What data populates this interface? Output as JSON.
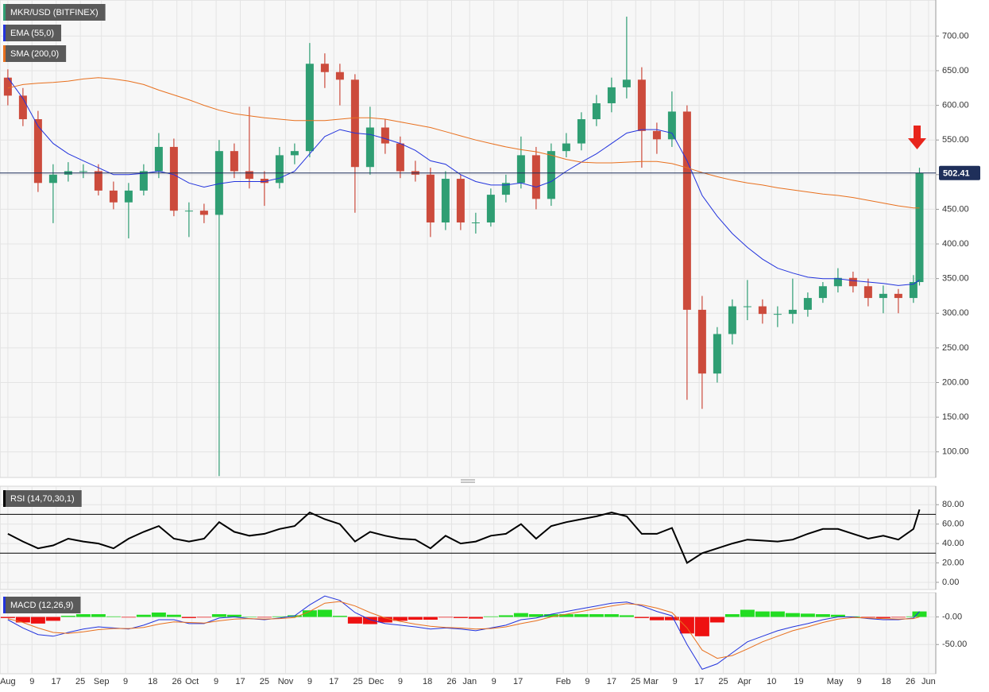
{
  "chart_data": [
    {
      "type": "candlestick",
      "title": "MKR/USD (BITFINEX)",
      "x": [
        0,
        5,
        10,
        15,
        20,
        25,
        30,
        35,
        40,
        45,
        50,
        55,
        60,
        65,
        70,
        75,
        80,
        85,
        90,
        95,
        100,
        105,
        110,
        115,
        120,
        125,
        130,
        135,
        140,
        145,
        150,
        155,
        160,
        165,
        170,
        175,
        180,
        185,
        190,
        195,
        200,
        205,
        210,
        215,
        220,
        225,
        230,
        235,
        240,
        245,
        250,
        255,
        260,
        265,
        270,
        275,
        280,
        285,
        290,
        295,
        300,
        302
      ],
      "open": [
        640,
        614,
        580,
        488,
        500,
        505,
        505,
        477,
        460,
        477,
        505,
        540,
        448,
        448,
        442,
        534,
        505,
        494,
        488,
        528,
        534,
        660,
        648,
        637,
        511,
        568,
        545,
        505,
        500,
        431,
        494,
        431,
        431,
        471,
        488,
        528,
        465,
        534,
        545,
        580,
        603,
        626,
        637,
        563,
        551,
        591,
        305,
        213,
        270,
        310,
        310,
        299,
        299,
        305,
        322,
        339,
        351,
        339,
        322,
        328,
        322,
        345
      ],
      "high": [
        652,
        625,
        592,
        515,
        518,
        515,
        515,
        490,
        488,
        515,
        560,
        552,
        460,
        458,
        550,
        545,
        598,
        505,
        540,
        545,
        690,
        675,
        660,
        645,
        598,
        580,
        555,
        520,
        510,
        505,
        500,
        445,
        480,
        500,
        555,
        540,
        545,
        560,
        590,
        615,
        640,
        728,
        655,
        575,
        620,
        600,
        325,
        280,
        320,
        348,
        320,
        310,
        350,
        330,
        345,
        365,
        360,
        350,
        340,
        335,
        355,
        510
      ],
      "low": [
        600,
        570,
        475,
        430,
        490,
        495,
        470,
        450,
        408,
        470,
        495,
        440,
        410,
        430,
        65,
        495,
        480,
        455,
        480,
        515,
        525,
        625,
        600,
        445,
        500,
        530,
        495,
        490,
        410,
        420,
        420,
        415,
        425,
        460,
        480,
        450,
        455,
        525,
        535,
        570,
        590,
        610,
        510,
        530,
        540,
        175,
        162,
        200,
        255,
        290,
        285,
        280,
        285,
        295,
        315,
        330,
        330,
        310,
        300,
        300,
        315,
        340
      ],
      "close": [
        614,
        580,
        488,
        500,
        505,
        505,
        477,
        460,
        477,
        505,
        540,
        448,
        448,
        442,
        534,
        505,
        494,
        488,
        528,
        534,
        660,
        648,
        637,
        511,
        568,
        545,
        505,
        500,
        431,
        494,
        431,
        431,
        471,
        488,
        528,
        465,
        534,
        545,
        580,
        603,
        626,
        637,
        563,
        551,
        591,
        305,
        213,
        270,
        310,
        310,
        299,
        299,
        305,
        322,
        339,
        351,
        339,
        322,
        328,
        322,
        345,
        502.41
      ],
      "up_color": "#2f9e73",
      "down_color": "#cc4b3c",
      "last_color": "#1f2f5a",
      "series": [
        {
          "name": "EMA (55,0)",
          "color": "#2233dd",
          "values": [
            640,
            610,
            570,
            545,
            530,
            520,
            510,
            500,
            500,
            502,
            505,
            500,
            488,
            482,
            487,
            490,
            490,
            490,
            495,
            505,
            530,
            555,
            565,
            560,
            558,
            552,
            545,
            535,
            520,
            515,
            500,
            490,
            485,
            485,
            488,
            482,
            490,
            505,
            518,
            530,
            545,
            560,
            565,
            565,
            560,
            520,
            470,
            440,
            415,
            395,
            378,
            365,
            358,
            352,
            350,
            350,
            347,
            345,
            343,
            340,
            342,
            348
          ]
        },
        {
          "name": "SMA (200,0)",
          "color": "#e8701e",
          "values": [
            625,
            630,
            632,
            633,
            635,
            638,
            640,
            638,
            635,
            630,
            622,
            615,
            608,
            600,
            593,
            588,
            585,
            582,
            580,
            578,
            578,
            578,
            580,
            582,
            582,
            580,
            576,
            572,
            568,
            562,
            556,
            550,
            545,
            540,
            536,
            533,
            528,
            522,
            518,
            517,
            517,
            518,
            519,
            519,
            516,
            510,
            503,
            497,
            492,
            488,
            485,
            481,
            478,
            475,
            472,
            470,
            467,
            463,
            459,
            455,
            452,
            452
          ]
        }
      ],
      "ylim": [
        63,
        752
      ],
      "yticks": [
        {
          "value": 100,
          "label": "100.00"
        },
        {
          "value": 150,
          "label": "150.00"
        },
        {
          "value": 200,
          "label": "200.00"
        },
        {
          "value": 250,
          "label": "250.00"
        },
        {
          "value": 300,
          "label": "300.00"
        },
        {
          "value": 350,
          "label": "350.00"
        },
        {
          "value": 400,
          "label": "400.00"
        },
        {
          "value": 450,
          "label": "450.00"
        },
        {
          "value": 500,
          "label": "500.00"
        },
        {
          "value": 550,
          "label": "550.00"
        },
        {
          "value": 600,
          "label": "600.00"
        },
        {
          "value": 650,
          "label": "650.00"
        },
        {
          "value": 700,
          "label": "700.00"
        }
      ],
      "xlim": [
        -2.6,
        307.4
      ],
      "xticks": [
        {
          "value": 0,
          "label": "Aug"
        },
        {
          "value": 8,
          "label": "9"
        },
        {
          "value": 16,
          "label": "17"
        },
        {
          "value": 24,
          "label": "25"
        },
        {
          "value": 31,
          "label": "Sep"
        },
        {
          "value": 39,
          "label": "9"
        },
        {
          "value": 48,
          "label": "18"
        },
        {
          "value": 56,
          "label": "26"
        },
        {
          "value": 61,
          "label": "Oct"
        },
        {
          "value": 69,
          "label": "9"
        },
        {
          "value": 77,
          "label": "17"
        },
        {
          "value": 85,
          "label": "25"
        },
        {
          "value": 92,
          "label": "Nov"
        },
        {
          "value": 100,
          "label": "9"
        },
        {
          "value": 108,
          "label": "17"
        },
        {
          "value": 116,
          "label": "25"
        },
        {
          "value": 122,
          "label": "Dec"
        },
        {
          "value": 130,
          "label": "9"
        },
        {
          "value": 139,
          "label": "18"
        },
        {
          "value": 147,
          "label": "26"
        },
        {
          "value": 153,
          "label": "Jan"
        },
        {
          "value": 161,
          "label": "9"
        },
        {
          "value": 169,
          "label": "17"
        },
        {
          "value": 184,
          "label": "Feb"
        },
        {
          "value": 192,
          "label": "9"
        },
        {
          "value": 200,
          "label": "17"
        },
        {
          "value": 208,
          "label": "25"
        },
        {
          "value": 213,
          "label": "Mar"
        },
        {
          "value": 221,
          "label": "9"
        },
        {
          "value": 229,
          "label": "17"
        },
        {
          "value": 237,
          "label": "25"
        },
        {
          "value": 244,
          "label": "Apr"
        },
        {
          "value": 253,
          "label": "10"
        },
        {
          "value": 262,
          "label": "19"
        },
        {
          "value": 274,
          "label": "May"
        },
        {
          "value": 282,
          "label": "9"
        },
        {
          "value": 291,
          "label": "18"
        },
        {
          "value": 299,
          "label": "26"
        },
        {
          "value": 305,
          "label": "Jun"
        }
      ],
      "grid": true
    },
    {
      "type": "line",
      "title": "RSI (14,70,30,1)",
      "color": "#000000",
      "values": [
        50,
        42,
        35,
        38,
        45,
        42,
        40,
        35,
        45,
        52,
        58,
        45,
        42,
        45,
        62,
        52,
        48,
        50,
        55,
        58,
        72,
        65,
        60,
        42,
        52,
        48,
        45,
        44,
        35,
        48,
        40,
        42,
        48,
        50,
        60,
        45,
        58,
        62,
        65,
        68,
        72,
        68,
        50,
        50,
        56,
        20,
        30,
        35,
        40,
        44,
        43,
        42,
        44,
        50,
        55,
        55,
        50,
        45,
        48,
        44,
        55,
        75
      ],
      "hlines": [
        70,
        30
      ],
      "ylim": [
        -7.4,
        99
      ],
      "yticks": [
        {
          "value": 0,
          "label": "0.00"
        },
        {
          "value": 20,
          "label": "20.00"
        },
        {
          "value": 40,
          "label": "40.00"
        },
        {
          "value": 60,
          "label": "60.00"
        },
        {
          "value": 80,
          "label": "80.00"
        }
      ],
      "grid": true
    },
    {
      "type": "macd",
      "title": "MACD (12,26,9)",
      "series": [
        {
          "color": "#2233dd",
          "values": [
            -5,
            -20,
            -32,
            -35,
            -28,
            -22,
            -18,
            -20,
            -22,
            -15,
            -5,
            -5,
            -12,
            -12,
            -2,
            0,
            -3,
            -5,
            -2,
            2,
            22,
            38,
            30,
            8,
            -5,
            -12,
            -15,
            -18,
            -22,
            -20,
            -22,
            -25,
            -20,
            -15,
            -5,
            -2,
            5,
            10,
            15,
            20,
            25,
            27,
            20,
            10,
            2,
            -50,
            -95,
            -85,
            -65,
            -45,
            -35,
            -25,
            -18,
            -12,
            -5,
            0,
            0,
            -3,
            -5,
            -5,
            -2,
            10
          ]
        },
        {
          "color": "#e8701e",
          "values": [
            -3,
            -10,
            -20,
            -28,
            -30,
            -27,
            -23,
            -21,
            -21,
            -19,
            -13,
            -9,
            -10,
            -11,
            -7,
            -4,
            -3,
            -4,
            -3,
            -1,
            10,
            25,
            28,
            20,
            8,
            -2,
            -8,
            -13,
            -17,
            -19,
            -20,
            -22,
            -21,
            -18,
            -12,
            -7,
            0,
            5,
            10,
            15,
            20,
            24,
            22,
            16,
            8,
            -20,
            -60,
            -75,
            -70,
            -58,
            -45,
            -35,
            -25,
            -18,
            -10,
            -4,
            -1,
            -2,
            -3,
            -4,
            -3,
            0
          ]
        }
      ],
      "histogram": [
        -2,
        -10,
        -12,
        -7,
        2,
        5,
        5,
        1,
        -1,
        4,
        8,
        4,
        -2,
        -1,
        5,
        4,
        0,
        -1,
        1,
        3,
        12,
        13,
        2,
        -12,
        -13,
        -10,
        -7,
        -5,
        -5,
        -1,
        -2,
        -3,
        1,
        3,
        7,
        5,
        5,
        5,
        5,
        5,
        5,
        3,
        -2,
        -6,
        -6,
        -30,
        -35,
        -10,
        5,
        13,
        10,
        10,
        7,
        6,
        5,
        4,
        1,
        -1,
        -2,
        -1,
        1,
        10
      ],
      "hist_up_color": "#22dd22",
      "hist_down_color": "#ee1111",
      "ylim": [
        -103,
        44
      ],
      "yticks": [
        {
          "value": 0,
          "label": "-0.00"
        },
        {
          "value": -50,
          "label": "-50.00"
        }
      ],
      "grid": true
    }
  ]
}
